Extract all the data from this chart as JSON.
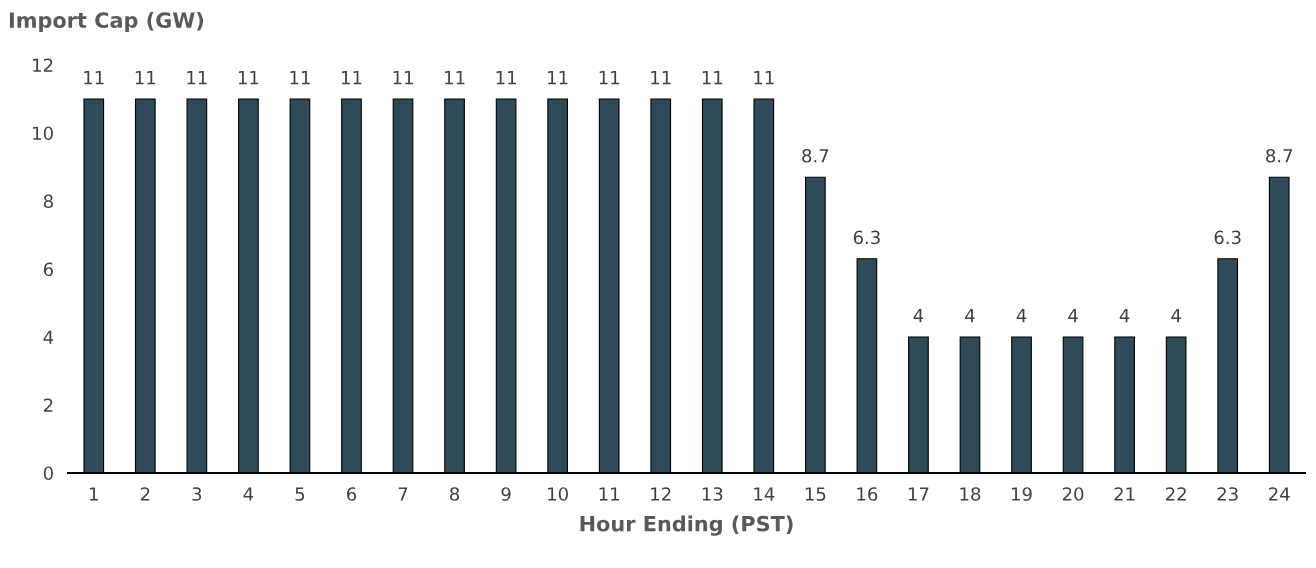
{
  "chart_data": {
    "type": "bar",
    "ylabel": "Import Cap (GW)",
    "xlabel": "Hour Ending (PST)",
    "categories": [
      "1",
      "2",
      "3",
      "4",
      "5",
      "6",
      "7",
      "8",
      "9",
      "10",
      "11",
      "12",
      "13",
      "14",
      "15",
      "16",
      "17",
      "18",
      "19",
      "20",
      "21",
      "22",
      "23",
      "24"
    ],
    "values": [
      11,
      11,
      11,
      11,
      11,
      11,
      11,
      11,
      11,
      11,
      11,
      11,
      11,
      11,
      8.7,
      6.3,
      4,
      4,
      4,
      4,
      4,
      4,
      6.3,
      8.7
    ],
    "color": "#2f4b59",
    "ylim": [
      0,
      12
    ],
    "yticks": [
      0,
      2,
      4,
      6,
      8,
      10,
      12
    ],
    "grid": false,
    "data_labels": true
  }
}
